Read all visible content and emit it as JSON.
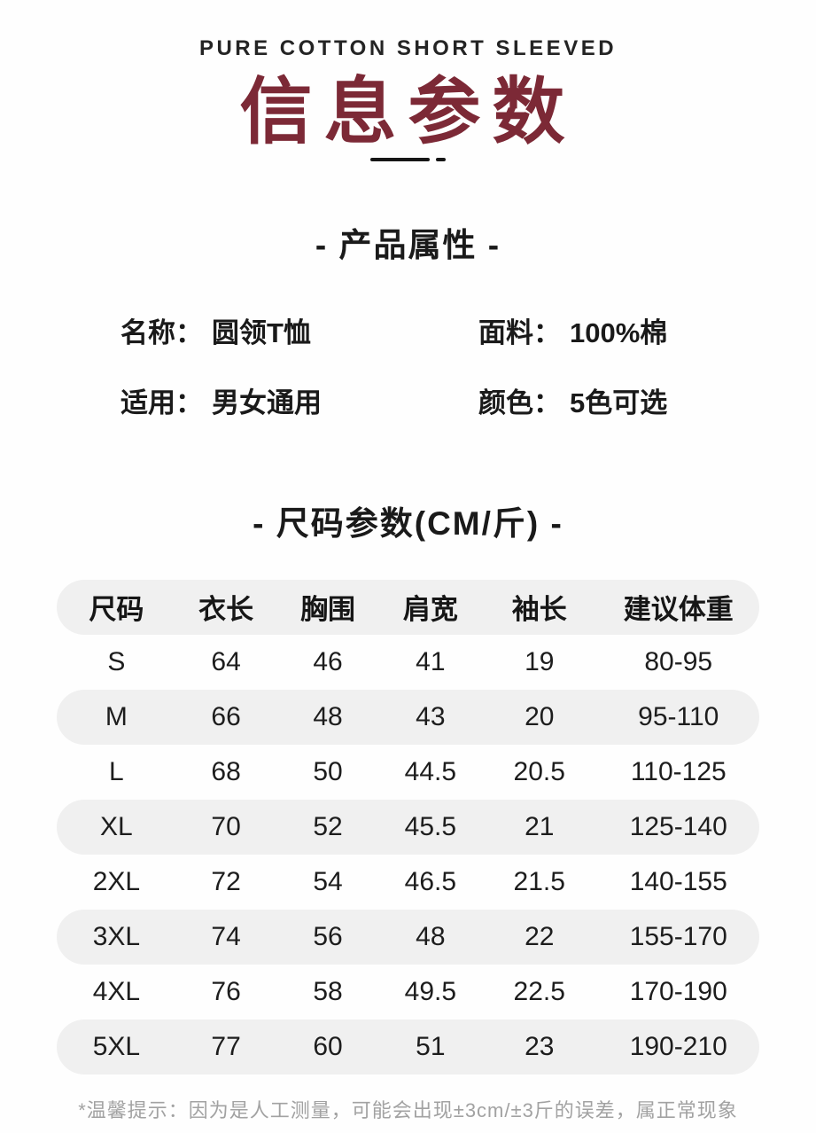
{
  "header": {
    "tagline": "PURE COTTON SHORT SLEEVED",
    "title": "信息参数",
    "title_color": "#7c2936"
  },
  "attributes_section": {
    "title": "- 产品属性 -",
    "items": [
      {
        "label": "名称：",
        "value": "圆领T恤"
      },
      {
        "label": "面料：",
        "value": "100%棉"
      },
      {
        "label": "适用：",
        "value": "男女通用"
      },
      {
        "label": "颜色：",
        "value": "5色可选"
      }
    ]
  },
  "size_section": {
    "title": "- 尺码参数(CM/斤) -",
    "table": {
      "headers": [
        "尺码",
        "衣长",
        "胸围",
        "肩宽",
        "袖长",
        "建议体重"
      ],
      "rows": [
        [
          "S",
          "64",
          "46",
          "41",
          "19",
          "80-95"
        ],
        [
          "M",
          "66",
          "48",
          "43",
          "20",
          "95-110"
        ],
        [
          "L",
          "68",
          "50",
          "44.5",
          "20.5",
          "110-125"
        ],
        [
          "XL",
          "70",
          "52",
          "45.5",
          "21",
          "125-140"
        ],
        [
          "2XL",
          "72",
          "54",
          "46.5",
          "21.5",
          "140-155"
        ],
        [
          "3XL",
          "74",
          "56",
          "48",
          "22",
          "155-170"
        ],
        [
          "4XL",
          "76",
          "58",
          "49.5",
          "22.5",
          "170-190"
        ],
        [
          "5XL",
          "77",
          "60",
          "51",
          "23",
          "190-210"
        ]
      ],
      "shaded_row_color": "#f0f0f0"
    }
  },
  "footer": {
    "note": "*温馨提示：因为是人工测量，可能会出现±3cm/±3斤的误差，属正常现象"
  }
}
